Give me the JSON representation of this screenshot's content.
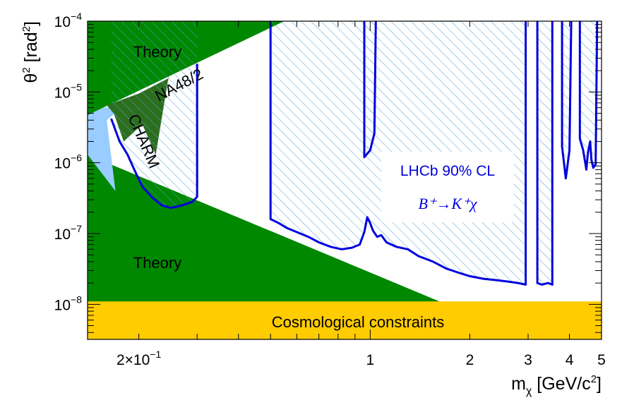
{
  "chart_data": {
    "type": "area",
    "x_scale": "log",
    "y_scale": "log",
    "xlim": [
      0.14,
      5.0
    ],
    "ylim": [
      3.2e-09,
      0.0001
    ],
    "xlabel": "m_χ [GeV/c²]",
    "ylabel": "θ² [rad²]",
    "x_ticks": [
      {
        "value": 0.2,
        "base": "2×10",
        "exp": "−1"
      },
      {
        "value": 1,
        "text": "1"
      },
      {
        "value": 2,
        "text": "2"
      },
      {
        "value": 3,
        "text": "3"
      },
      {
        "value": 4,
        "text": "4"
      },
      {
        "value": 5,
        "text": "5"
      }
    ],
    "y_ticks": [
      {
        "value": 0.0001,
        "base": "10",
        "exp": "−4"
      },
      {
        "value": 1e-05,
        "base": "10",
        "exp": "−5"
      },
      {
        "value": 1e-06,
        "base": "10",
        "exp": "−6"
      },
      {
        "value": 1e-07,
        "base": "10",
        "exp": "−7"
      },
      {
        "value": 1e-08,
        "base": "10",
        "exp": "−8"
      }
    ],
    "legend": {
      "line1": "LHCb 90% CL",
      "line2": "B⁺→K⁺χ",
      "placement": "center-right"
    },
    "colors": {
      "theory": "#008800",
      "na48": "#2d6e1c",
      "charm": "#99ccff",
      "cosmo": "#ffcc00",
      "lhcb_line": "#0000dd",
      "hatch": "#4aa0d8"
    },
    "regions": [
      {
        "name": "Theory",
        "label": "Theory",
        "kind": "theory-upper"
      },
      {
        "name": "Theory",
        "label": "Theory",
        "kind": "theory-lower"
      },
      {
        "name": "NA48/2",
        "label": "NA48/2"
      },
      {
        "name": "CHARM",
        "label": "CHARM"
      },
      {
        "name": "Cosmological constraints",
        "label": "Cosmological constraints",
        "ymax": 1.1e-08
      }
    ],
    "theory_upper_boundary": [
      [
        0.14,
        4.7e-06
      ],
      [
        0.55,
        0.0001
      ]
    ],
    "theory_lower_boundary": [
      [
        0.14,
        1.3e-06
      ],
      [
        1.62,
        1.1e-08
      ]
    ],
    "charm_region": [
      [
        0.14,
        4.7e-06
      ],
      [
        0.14,
        1.3e-06
      ],
      [
        0.17,
        4e-07
      ],
      [
        0.16,
        4e-06
      ],
      [
        0.2,
        9.5e-06
      ],
      [
        0.19,
        7e-06
      ],
      [
        0.155,
        5.9e-06
      ]
    ],
    "na48_region": [
      [
        0.16,
        6.5e-06
      ],
      [
        0.2,
        9.5e-06
      ],
      [
        0.245,
        1.55e-05
      ],
      [
        0.25,
        2.6e-05
      ],
      [
        0.225,
        1.3e-06
      ],
      [
        0.205,
        3.5e-06
      ],
      [
        0.18,
        2e-06
      ],
      [
        0.168,
        5e-06
      ]
    ],
    "lhcb_limit": [
      {
        "segment": [
          [
            0.165,
            4.2e-06
          ],
          [
            0.175,
            2e-06
          ],
          [
            0.185,
            1.3e-06
          ],
          [
            0.195,
            7.5e-07
          ],
          [
            0.205,
            4.6e-07
          ],
          [
            0.22,
            3.2e-07
          ],
          [
            0.235,
            2.5e-07
          ],
          [
            0.25,
            2.3e-07
          ],
          [
            0.27,
            2.5e-07
          ],
          [
            0.29,
            2.8e-07
          ],
          [
            0.3,
            3.3e-07
          ],
          [
            0.3,
            2.5e-05
          ]
        ]
      },
      {
        "segment": [
          [
            0.5,
            0.0001
          ],
          [
            0.5,
            1.6e-07
          ],
          [
            0.53,
            1.4e-07
          ],
          [
            0.56,
            1.2e-07
          ],
          [
            0.6,
            1.05e-07
          ],
          [
            0.65,
            9e-08
          ],
          [
            0.7,
            7.5e-08
          ],
          [
            0.76,
            6.5e-08
          ],
          [
            0.82,
            6e-08
          ],
          [
            0.88,
            6.3e-08
          ],
          [
            0.93,
            7e-08
          ],
          [
            0.96,
            1.05e-07
          ],
          [
            0.98,
            1.7e-07
          ],
          [
            1.0,
            1.4e-07
          ],
          [
            1.02,
            1.1e-07
          ],
          [
            1.05,
            9e-08
          ],
          [
            1.08,
            9.5e-08
          ],
          [
            1.12,
            7.5e-08
          ],
          [
            1.2,
            6.5e-08
          ],
          [
            1.3,
            6e-08
          ],
          [
            1.4,
            4.8e-08
          ],
          [
            1.55,
            4e-08
          ],
          [
            1.7,
            3.2e-08
          ],
          [
            1.85,
            2.8e-08
          ],
          [
            2.0,
            2.5e-08
          ],
          [
            2.2,
            2.3e-08
          ],
          [
            2.4,
            2.2e-08
          ],
          [
            2.6,
            2.1e-08
          ],
          [
            2.8,
            2e-08
          ],
          [
            2.95,
            1.9e-08
          ],
          [
            2.95,
            0.0001
          ]
        ]
      },
      {
        "segment": [
          [
            0.96,
            0.0001
          ],
          [
            0.96,
            1.2e-06
          ],
          [
            1.0,
            1.5e-06
          ],
          [
            1.03,
            2.6e-06
          ],
          [
            1.04,
            0.0001
          ]
        ]
      },
      {
        "segment": [
          [
            3.2,
            0.0001
          ],
          [
            3.2,
            2e-08
          ],
          [
            3.3,
            1.9e-08
          ],
          [
            3.45,
            2e-08
          ],
          [
            3.55,
            1.9e-08
          ],
          [
            3.55,
            0.0001
          ]
        ]
      },
      {
        "segment": [
          [
            3.8,
            0.0001
          ],
          [
            3.8,
            1.7e-06
          ],
          [
            3.9,
            6e-07
          ],
          [
            4.0,
            1.5e-06
          ],
          [
            4.05,
            0.0001
          ]
        ]
      },
      {
        "segment": [
          [
            4.3,
            0.0001
          ],
          [
            4.3,
            2.2e-06
          ],
          [
            4.4,
            1.5e-06
          ],
          [
            4.5,
            8e-07
          ],
          [
            4.55,
            1.4e-06
          ],
          [
            4.62,
            2e-06
          ],
          [
            4.66,
            1.1e-06
          ],
          [
            4.72,
            8.5e-07
          ],
          [
            4.8,
            9.5e-07
          ],
          [
            4.85,
            0.0001
          ]
        ]
      }
    ]
  }
}
